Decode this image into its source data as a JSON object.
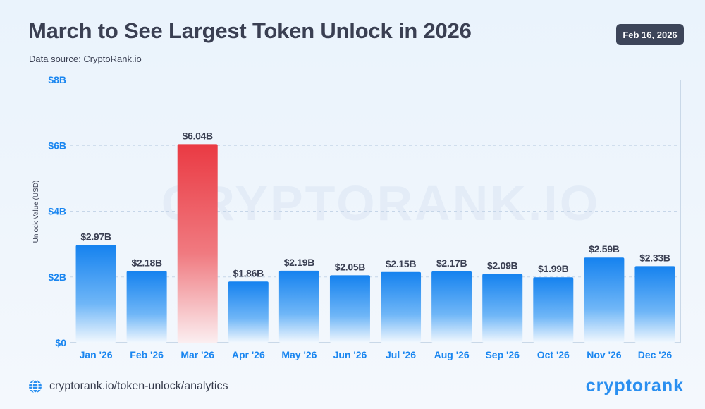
{
  "header": {
    "title": "March to See Largest Token Unlock in 2026",
    "subtitle": "Data source: CryptoRank.io",
    "date_badge": "Feb 16, 2026"
  },
  "footer": {
    "link_text": "cryptorank.io/token-unlock/analytics",
    "link_icon": "globe-icon",
    "brand": "cryptorank"
  },
  "watermark": "CRYPTORANK.IO",
  "colors": {
    "bar": "#1a86f0",
    "highlight": "#ec4149",
    "text_dark": "#3a3f52",
    "axis_label": "#1a86f0"
  },
  "chart_data": {
    "type": "bar",
    "title": "March to See Largest Token Unlock in 2026",
    "xlabel": "",
    "ylabel": "Unlock Value (USD)",
    "categories": [
      "Jan '26",
      "Feb '26",
      "Mar '26",
      "Apr '26",
      "May '26",
      "Jun '26",
      "Jul '26",
      "Aug '26",
      "Sep '26",
      "Oct '26",
      "Nov '26",
      "Dec '26"
    ],
    "values": [
      2.97,
      2.18,
      6.04,
      1.86,
      2.19,
      2.05,
      2.15,
      2.17,
      2.09,
      1.99,
      2.59,
      2.33
    ],
    "data_labels": [
      "$2.97B",
      "$2.18B",
      "$6.04B",
      "$1.86B",
      "$2.19B",
      "$2.05B",
      "$2.15B",
      "$2.17B",
      "$2.09B",
      "$1.99B",
      "$2.59B",
      "$2.33B"
    ],
    "highlight_category": "Mar '26",
    "ylim": [
      0,
      8
    ],
    "yticks": [
      0,
      2,
      4,
      6,
      8
    ],
    "ytick_labels": [
      "$0",
      "$2B",
      "$4B",
      "$6B",
      "$8B"
    ],
    "grid": true,
    "legend": "none"
  }
}
